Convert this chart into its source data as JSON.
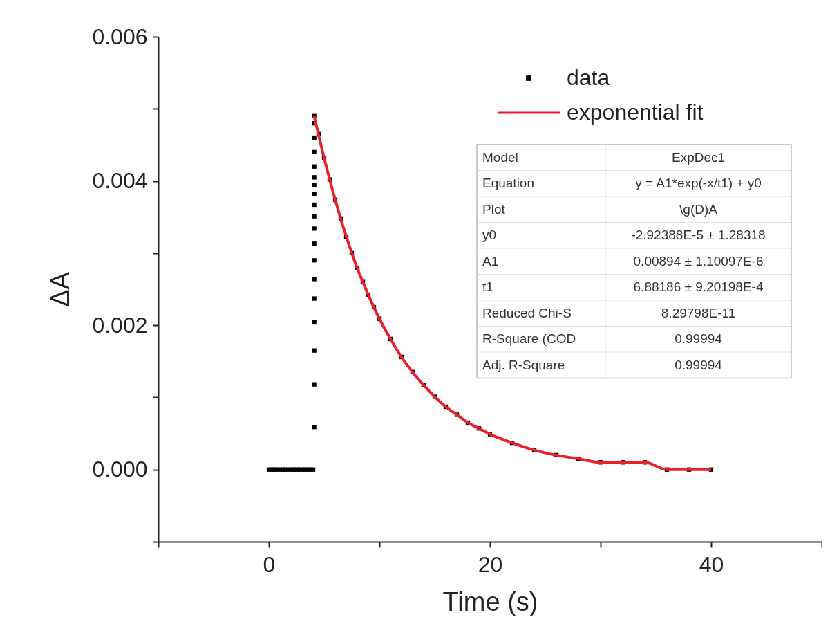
{
  "chart_data": {
    "type": "scatter",
    "xlabel": "Time (s)",
    "ylabel": "ΔA",
    "xlim": [
      -10,
      50
    ],
    "ylim": [
      -0.001,
      0.006
    ],
    "xticks": [
      {
        "value": -10,
        "label": null
      },
      0,
      {
        "value": 10,
        "label": null
      },
      20,
      {
        "value": 30,
        "label": null
      },
      40,
      {
        "value": 50,
        "label": null
      }
    ],
    "yticks": [
      {
        "value": -0.001,
        "label": null
      },
      {
        "value": 0,
        "label": "0.000"
      },
      {
        "value": 0.001,
        "label": null
      },
      {
        "value": 0.002,
        "label": "0.002"
      },
      {
        "value": 0.003,
        "label": null
      },
      {
        "value": 0.004,
        "label": "0.004"
      },
      {
        "value": 0.005,
        "label": null
      },
      {
        "value": 0.006,
        "label": "0.006"
      }
    ],
    "grid": false,
    "legend": "top right",
    "series": [
      {
        "name": "data",
        "marker": "square",
        "color": "#000000",
        "x": [
          0,
          0.25,
          0.5,
          0.75,
          1,
          1.25,
          1.5,
          1.75,
          2,
          2.25,
          2.5,
          2.75,
          3,
          3.25,
          3.5,
          3.75,
          4,
          4.1,
          4.1,
          4.1,
          4.1,
          4.1,
          4.1,
          4.1,
          4.1,
          4.1,
          4.1,
          4.1,
          4.1,
          4.1,
          4.1,
          4.1,
          4.1,
          4.1,
          4.1,
          4.1,
          4.5,
          5,
          5.5,
          6,
          6.5,
          7,
          7.5,
          8,
          8.5,
          9,
          9.5,
          10,
          11,
          12,
          13,
          14,
          15,
          16,
          17,
          18,
          19,
          20,
          22,
          24,
          26,
          28,
          30,
          32,
          34,
          36,
          38,
          40
        ],
        "values": [
          0,
          0,
          0,
          0,
          0,
          0,
          0,
          0,
          0,
          0,
          0,
          0,
          0,
          0,
          0,
          0,
          0,
          0.00059,
          0.00118,
          0.00165,
          0.00204,
          0.00237,
          0.00264,
          0.0029,
          0.00313,
          0.00334,
          0.00351,
          0.00367,
          0.00382,
          0.00394,
          0.00405,
          0.0042,
          0.0044,
          0.0046,
          0.0048,
          0.0049,
          0.00465,
          0.00432,
          0.00402,
          0.00374,
          0.00348,
          0.00323,
          0.003,
          0.00279,
          0.0026,
          0.00242,
          0.00225,
          0.00209,
          0.00181,
          0.00156,
          0.00135,
          0.00117,
          0.00101,
          0.00087,
          0.00076,
          0.00065,
          0.00057,
          0.00049,
          0.00037,
          0.00027,
          0.0002,
          0.00015,
          0.0001,
          0.0001,
          0.0001,
          0.0,
          0.0,
          0.0
        ]
      },
      {
        "name": "exponential fit",
        "type": "line",
        "marker": "none",
        "color": "#e8202a",
        "x": [
          4.1,
          5,
          6,
          7,
          8,
          9,
          10,
          11,
          12,
          13,
          14,
          15,
          16,
          17,
          18,
          19,
          20,
          22,
          24,
          26,
          28,
          30,
          32,
          34,
          36,
          38,
          40
        ],
        "values": [
          0.0049,
          0.00432,
          0.00374,
          0.00323,
          0.00279,
          0.00242,
          0.00209,
          0.00181,
          0.00156,
          0.00135,
          0.00117,
          0.00101,
          0.00087,
          0.00076,
          0.00065,
          0.00057,
          0.00049,
          0.00037,
          0.00027,
          0.0002,
          0.00015,
          0.0001,
          0.0001,
          0.0001,
          0.0,
          0.0,
          0.0
        ]
      }
    ],
    "annotations": [
      "Model",
      "ExpDec1",
      "Equation",
      "y = A1*exp(-x/t1) + y0",
      "Plot",
      "\\g(D)A",
      "y0",
      "-2.92388E-5 ± 1.28318",
      "A1",
      "0.00894 ± 1.10097E-6",
      "t1",
      "6.88186 ± 9.20198E-4",
      "Reduced Chi-S",
      "8.29798E-11",
      "R-Square (COD",
      "0.99994",
      "Adj. R-Square",
      "0.99994"
    ]
  }
}
